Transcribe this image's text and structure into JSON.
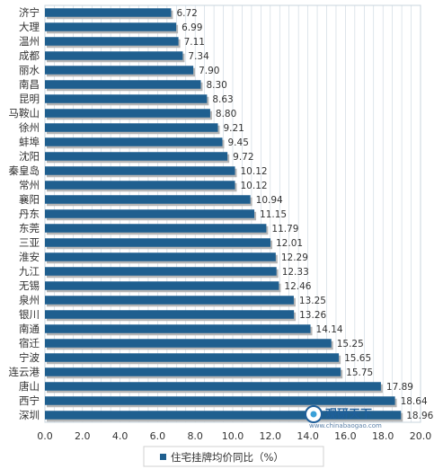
{
  "chart_data": {
    "type": "bar",
    "orientation": "horizontal",
    "categories": [
      "济宁",
      "大理",
      "温州",
      "成都",
      "丽水",
      "南昌",
      "昆明",
      "马鞍山",
      "徐州",
      "蚌埠",
      "沈阳",
      "秦皇岛",
      "常州",
      "襄阳",
      "丹东",
      "东莞",
      "三亚",
      "淮安",
      "九江",
      "无锡",
      "泉州",
      "银川",
      "南通",
      "宿迁",
      "宁波",
      "连云港",
      "唐山",
      "西宁",
      "深圳"
    ],
    "series": [
      {
        "name": "住宅挂牌均价同比（%）",
        "values": [
          6.72,
          6.99,
          7.11,
          7.34,
          7.9,
          8.3,
          8.63,
          8.8,
          9.21,
          9.45,
          9.72,
          10.12,
          10.12,
          10.94,
          11.15,
          11.79,
          12.01,
          12.29,
          12.33,
          12.46,
          13.25,
          13.26,
          14.14,
          15.25,
          15.65,
          15.75,
          17.89,
          18.64,
          18.96
        ],
        "value_labels": [
          "6.72",
          "6.99",
          "7.11",
          "7.34",
          "7.90",
          "8.30",
          "8.63",
          "8.80",
          "9.21",
          "9.45",
          "9.72",
          "10.12",
          "10.12",
          "10.94",
          "11.15",
          "11.79",
          "12.01",
          "12.29",
          "12.33",
          "12.46",
          "13.25",
          "13.26",
          "14.14",
          "15.25",
          "15.65",
          "15.75",
          "17.89",
          "18.64",
          "18.96"
        ]
      }
    ],
    "x_ticks": [
      "0.0",
      "2.0",
      "4.0",
      "6.0",
      "8.0",
      "10.0",
      "12.0",
      "14.0",
      "16.0",
      "18.0",
      "20.0"
    ],
    "xlim": [
      0,
      20
    ],
    "grid": "vertical",
    "legend": "bottom",
    "colors": {
      "bar": "#1f5f8f",
      "bar_shadow": "#b5b5b5",
      "grid": "#c8d4de",
      "plot_bg": "#ffffff"
    }
  },
  "watermark": {
    "title": "观研天下",
    "subtitle": "www.chinabaogao.com"
  }
}
